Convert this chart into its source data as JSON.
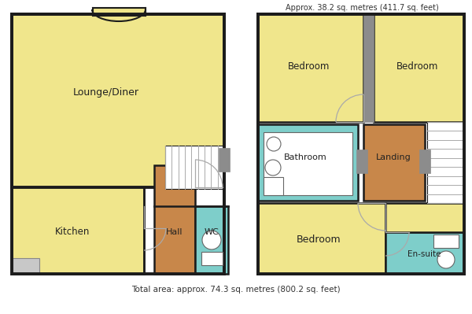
{
  "wall_color": "#1c1c1c",
  "yellow": "#f0e68c",
  "teal": "#7ececa",
  "brown": "#c8874a",
  "gray_wall": "#8c8c8c",
  "light_gray": "#c8c8c8",
  "white": "#ffffff",
  "top_label": "Approx. 38.2 sq. metres (411.7 sq. feet)",
  "bottom_label": "Total area: approx. 74.3 sq. metres (800.2 sq. feet)",
  "gf_outer": [
    15,
    18,
    275,
    340
  ],
  "uf_outer": [
    325,
    18,
    590,
    340
  ],
  "rooms_gf": {
    "lounge": [
      15,
      18,
      275,
      228,
      "#f0e68c",
      "Lounge/Diner",
      9
    ],
    "kitchen": [
      15,
      228,
      175,
      340,
      "#f0e68c",
      "Kitchen",
      8.5
    ],
    "hall": [
      190,
      200,
      240,
      340,
      "#c8874a",
      "Hall",
      8
    ],
    "wc": [
      240,
      255,
      290,
      340,
      "#7ececa",
      "WC",
      8
    ]
  },
  "rooms_uf": {
    "bed1": [
      325,
      18,
      457,
      158,
      "#f0e68c",
      "Bedroom",
      8.5
    ],
    "bed2": [
      472,
      18,
      590,
      158,
      "#f0e68c",
      "Bedroom",
      8.5
    ],
    "bathroom": [
      325,
      158,
      450,
      255,
      "#7ececa",
      "Bathroom",
      8
    ],
    "landing": [
      457,
      158,
      530,
      255,
      "#c8874a",
      "Landing",
      8
    ],
    "bed3": [
      325,
      255,
      490,
      340,
      "#f0e68c",
      "Bedroom",
      9
    ],
    "ensuite": [
      490,
      290,
      590,
      340,
      "#7ececa",
      "En-suite",
      7.5
    ]
  }
}
